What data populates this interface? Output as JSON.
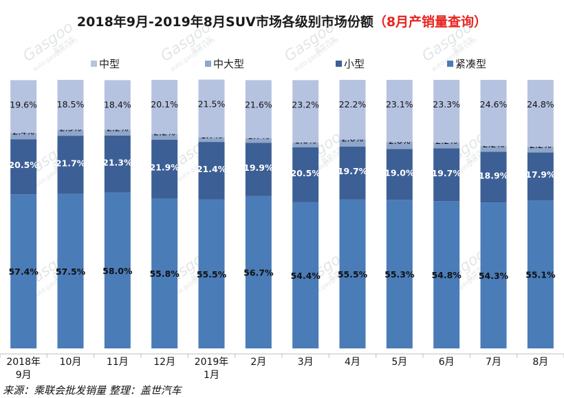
{
  "chart_data": {
    "type": "bar",
    "stacked": true,
    "title": "2018年9月-2019年8月SUV市场各级别市场份额",
    "subtitle": "（8月产销量查询）",
    "categories": [
      "2018年9月",
      "10月",
      "11月",
      "12月",
      "2019年1月",
      "2月",
      "3月",
      "4月",
      "5月",
      "6月",
      "7月",
      "8月"
    ],
    "series": [
      {
        "name": "紧凑型",
        "color": "#4a7cb8",
        "values": [
          57.4,
          57.5,
          58.0,
          55.8,
          55.5,
          56.7,
          54.4,
          55.5,
          55.3,
          54.8,
          54.3,
          55.1
        ],
        "labels": [
          "57.4%",
          "57.5%",
          "58.0%",
          "55.8%",
          "55.5%",
          "56.7%",
          "54.4%",
          "55.5%",
          "55.3%",
          "54.8%",
          "54.3%",
          "55.1%"
        ]
      },
      {
        "name": "小型",
        "color": "#3c5f95",
        "values": [
          20.5,
          21.7,
          21.3,
          21.9,
          21.4,
          19.9,
          20.5,
          19.7,
          19.0,
          19.7,
          18.9,
          17.9
        ],
        "labels": [
          "20.5%",
          "21.7%",
          "21.3%",
          "21.9%",
          "21.4%",
          "19.9%",
          "20.5%",
          "19.7%",
          "19.0%",
          "19.7%",
          "18.9%",
          "17.9%"
        ]
      },
      {
        "name": "中大型",
        "color": "#8fa6c9",
        "values": [
          2.4,
          2.3,
          2.2,
          2.2,
          1.7,
          1.7,
          1.8,
          2.6,
          2.6,
          2.2,
          2.2,
          2.2
        ],
        "labels": [
          "2.4%",
          "2.3%",
          "2.2%",
          "2.2%",
          "1.7%",
          "1.7%",
          "1.8%",
          "2.6%",
          "2.6%",
          "2.2%",
          "2.2%",
          "2.2%"
        ]
      },
      {
        "name": "中型",
        "color": "#b6c3e0",
        "values": [
          19.6,
          18.5,
          18.4,
          20.1,
          21.5,
          21.6,
          23.2,
          22.2,
          23.1,
          23.3,
          24.6,
          24.8
        ],
        "labels": [
          "19.6%",
          "18.5%",
          "18.4%",
          "20.1%",
          "21.5%",
          "21.6%",
          "23.2%",
          "22.2%",
          "23.1%",
          "23.3%",
          "24.6%",
          "24.8%"
        ]
      }
    ],
    "legend": [
      "中型",
      "中大型",
      "小型",
      "紧凑型"
    ],
    "legend_position": "top",
    "ylim": [
      0,
      100
    ],
    "grid": false
  },
  "source_label": "来源：乘联会批发销量   整理：盖世汽车",
  "watermark": {
    "brand": "Gasgoo",
    "cn": "盖世汽车",
    "url": "auto.gasgoo.com"
  }
}
